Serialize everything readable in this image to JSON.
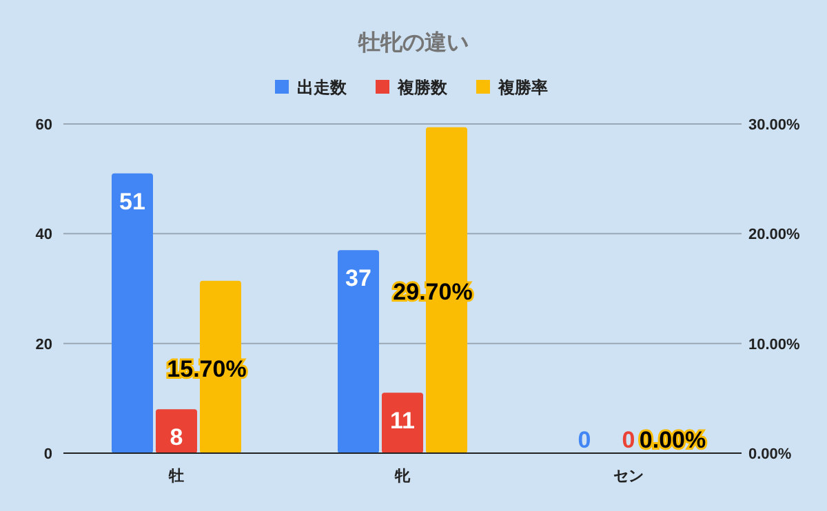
{
  "chart_data": {
    "type": "bar",
    "title": "牡牝の違い",
    "categories": [
      "牡",
      "牝",
      "セン"
    ],
    "series": [
      {
        "name": "出走数",
        "color": "#4285f4",
        "values": [
          51,
          37,
          0
        ],
        "value_labels": [
          "51",
          "37",
          "0"
        ]
      },
      {
        "name": "複勝数",
        "color": "#ea4335",
        "values": [
          8,
          11,
          0
        ],
        "value_labels": [
          "8",
          "11",
          "0"
        ]
      },
      {
        "name": "複勝率",
        "color": "#fbbc04",
        "values": [
          15.7,
          29.7,
          0
        ],
        "axis": "y2",
        "value_labels": [
          "15.70%",
          "29.70%",
          "0.00%"
        ]
      }
    ],
    "ylim": [
      0,
      60
    ],
    "yticks": [
      0,
      20,
      40,
      60
    ],
    "y2lim": [
      0,
      30
    ],
    "y2ticks": [
      {
        "value": 0,
        "label": "0.00%"
      },
      {
        "value": 10,
        "label": "10.00%"
      },
      {
        "value": 20,
        "label": "20.00%"
      },
      {
        "value": 30,
        "label": "30.00%"
      }
    ],
    "grid": "y",
    "legend": "top"
  }
}
